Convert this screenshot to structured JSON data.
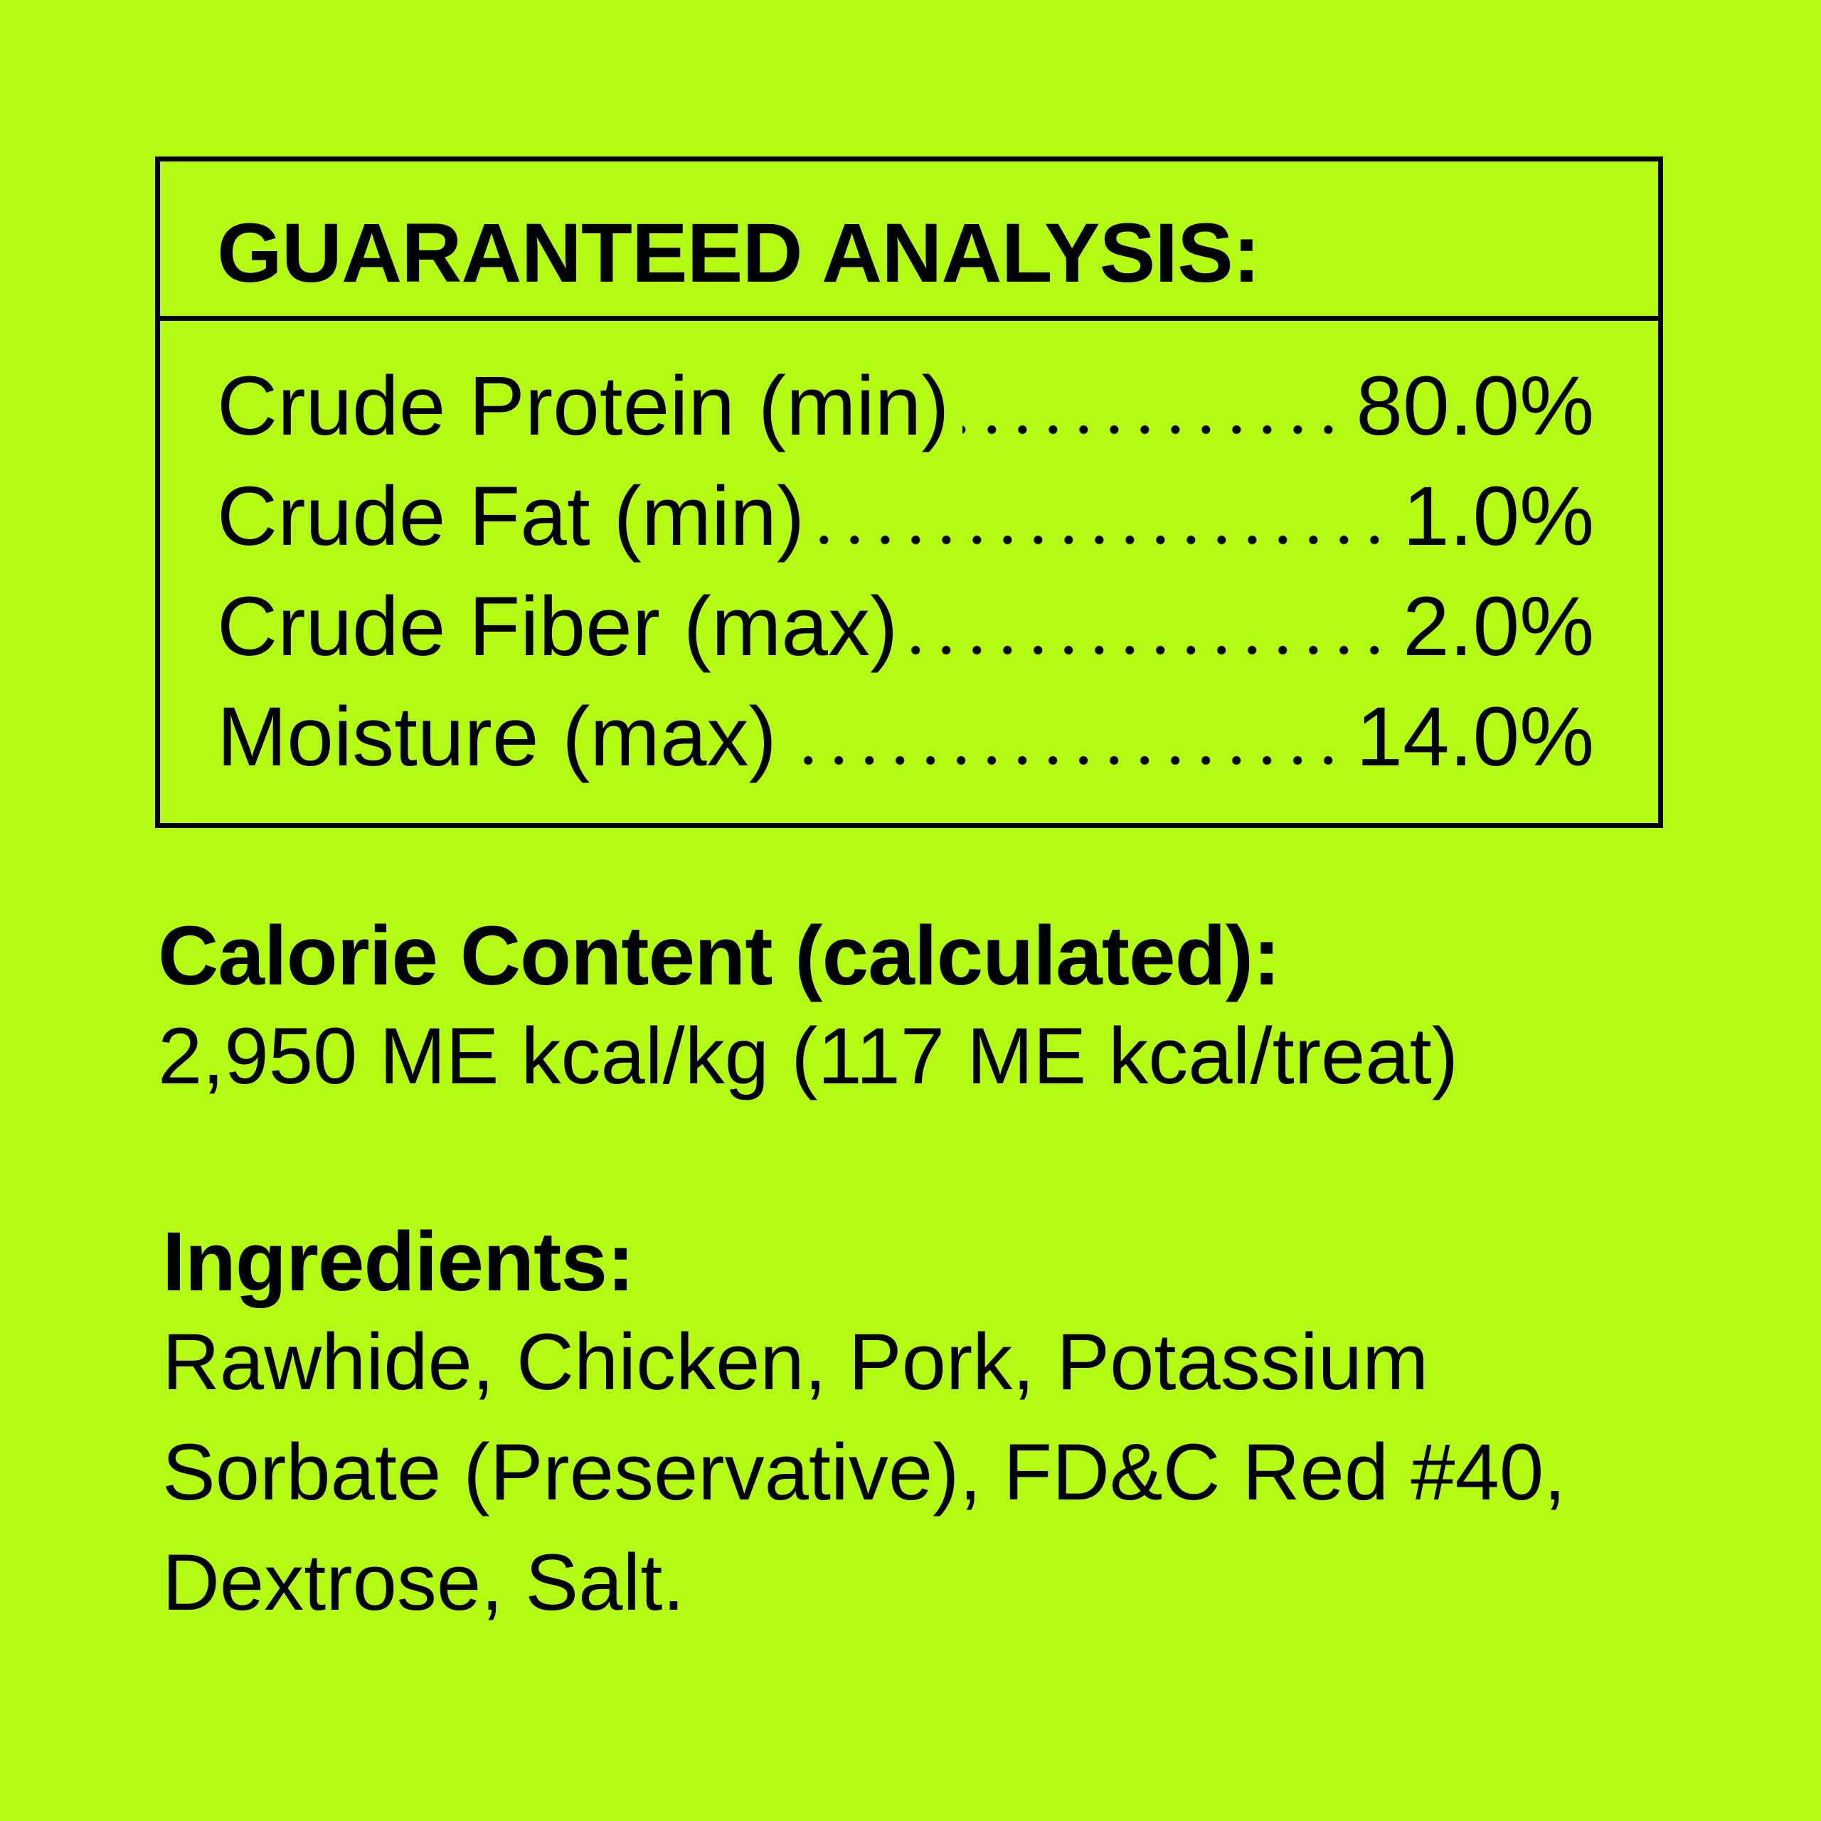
{
  "guaranteed_analysis": {
    "title": "GUARANTEED ANALYSIS:",
    "rows": [
      {
        "label": "Crude Protein (min)",
        "value": "80.0%"
      },
      {
        "label": "Crude Fat (min)",
        "value": "1.0%"
      },
      {
        "label": "Crude Fiber (max)",
        "value": "2.0%"
      },
      {
        "label": "Moisture (max)",
        "value": "14.0%"
      }
    ]
  },
  "calorie": {
    "heading": "Calorie Content (calculated):",
    "value": "2,950 ME kcal/kg (117 ME kcal/treat)"
  },
  "ingredients": {
    "heading": "Ingredients:",
    "lines": [
      "Rawhide, Chicken, Pork, Potassium",
      "Sorbate (Preservative), FD&C Red #40,",
      "Dextrose, Salt."
    ]
  },
  "colors": {
    "background": "#b3fb12",
    "text": "#000000"
  }
}
